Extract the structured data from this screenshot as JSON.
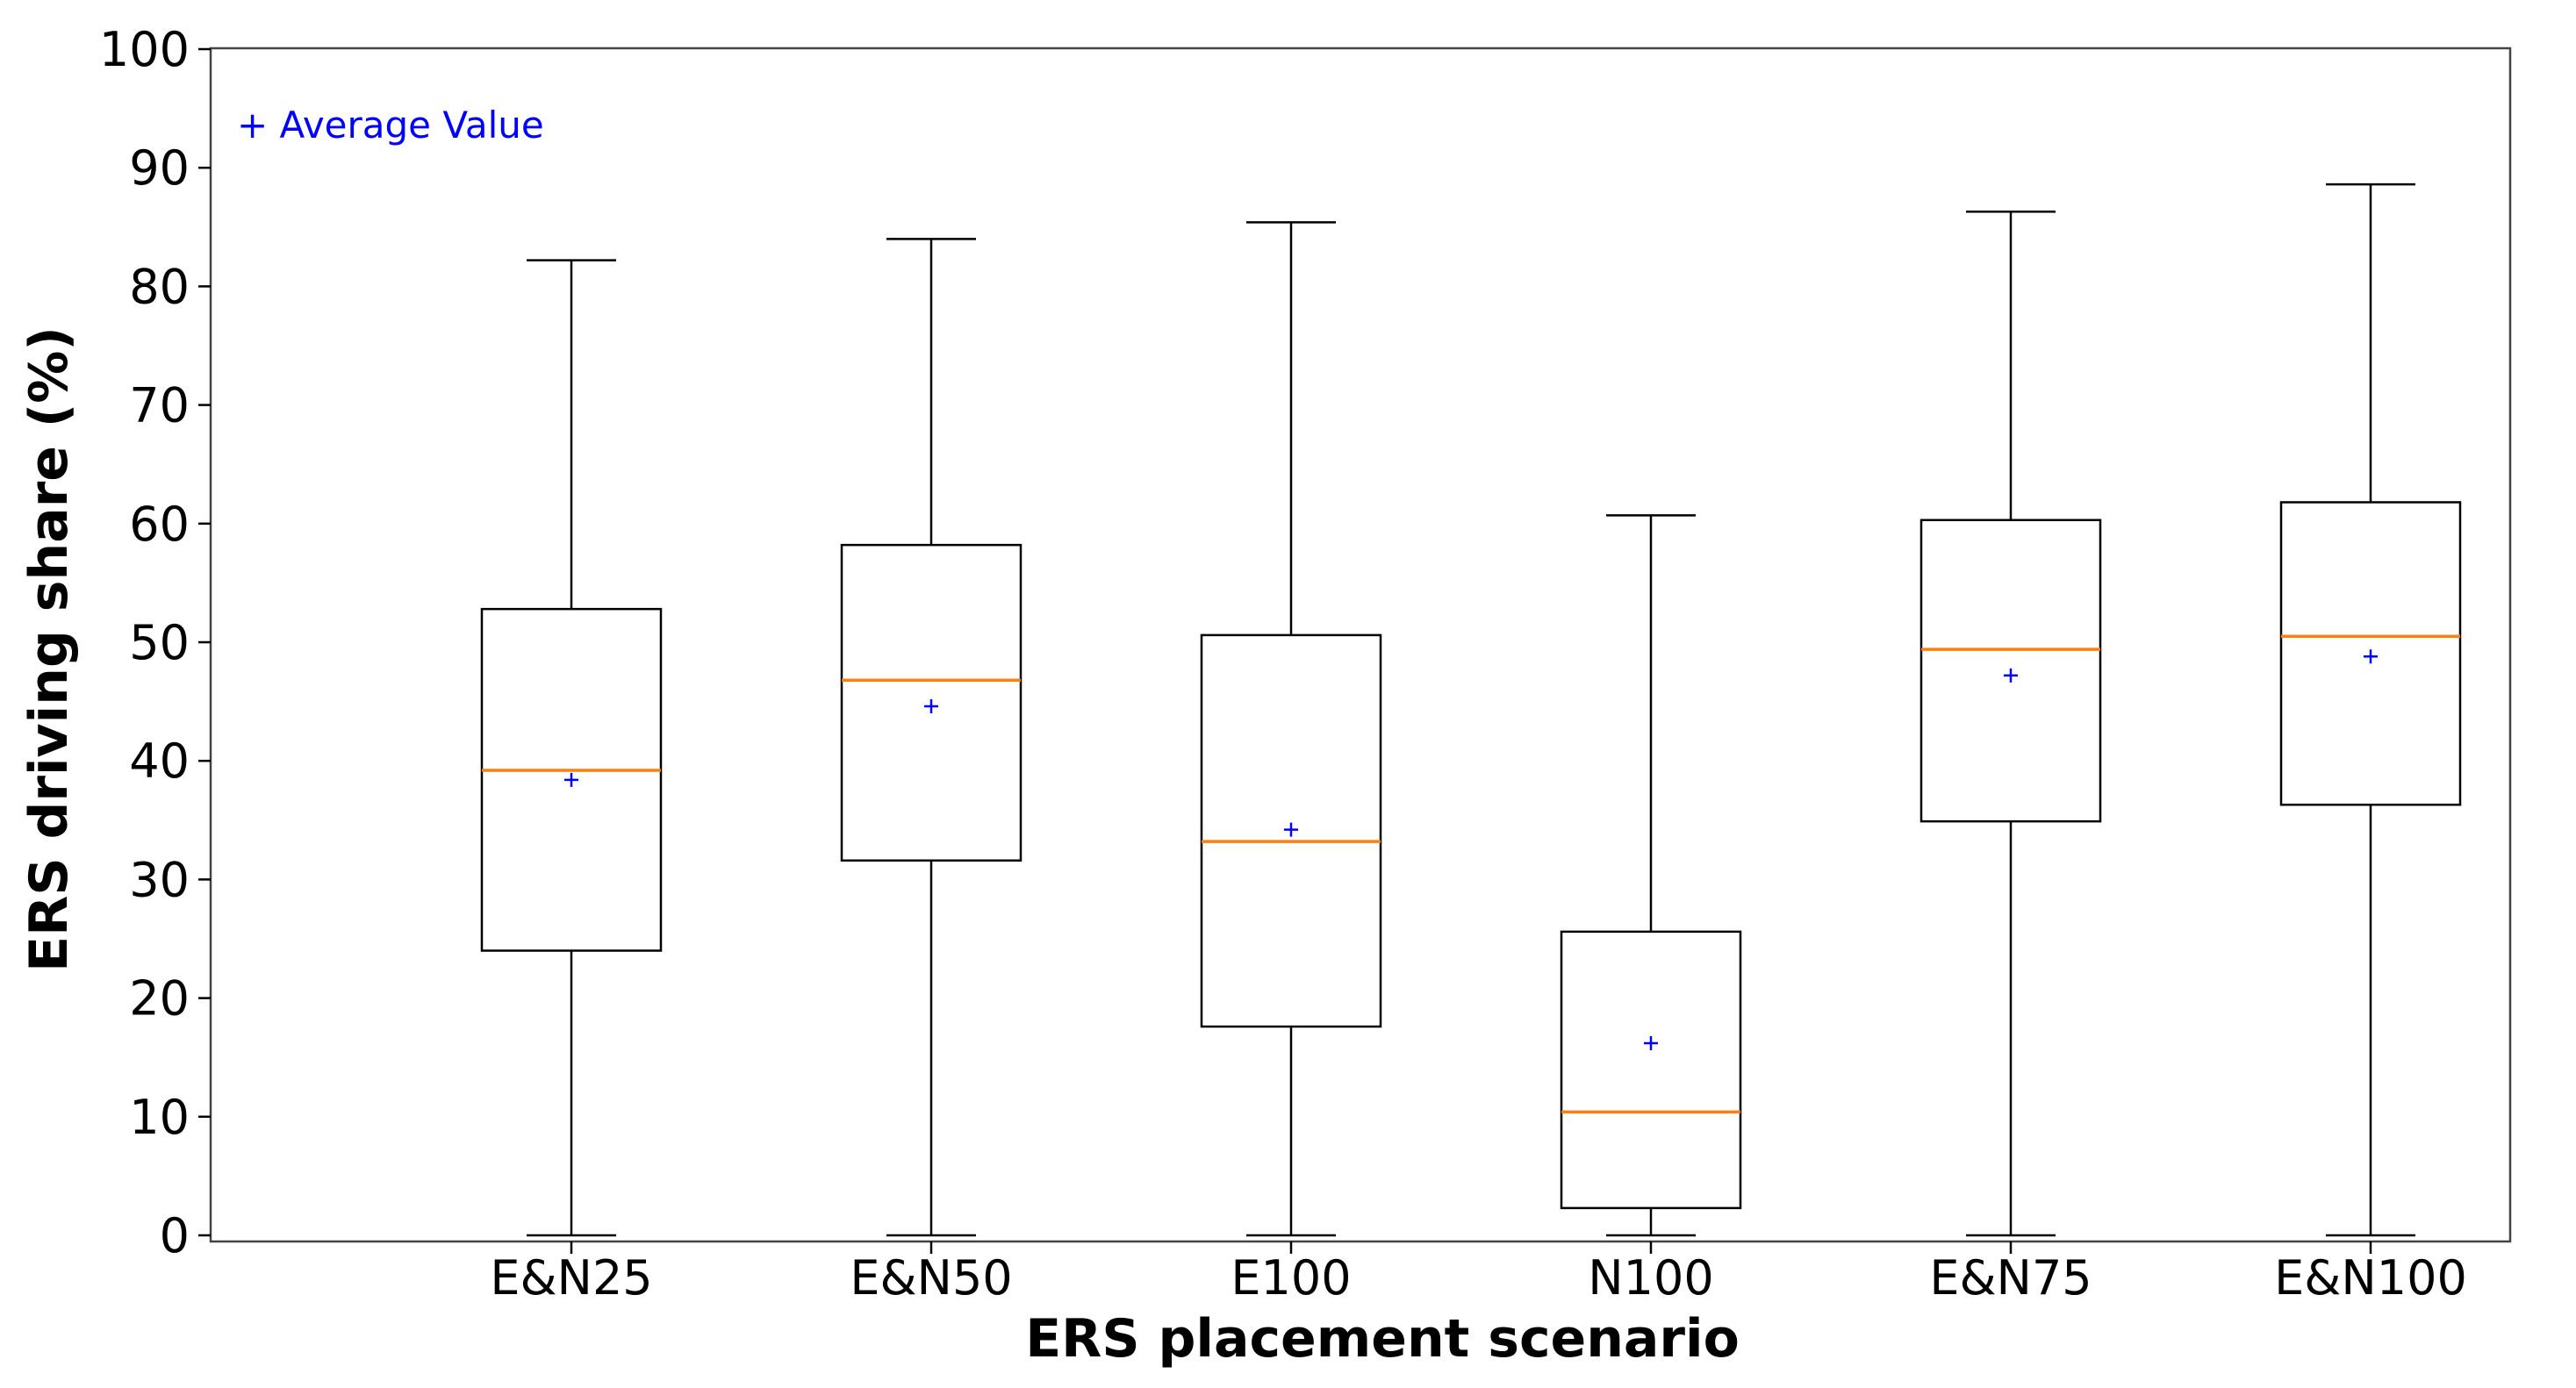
{
  "chart_data": {
    "type": "box",
    "xlabel": "ERS placement scenario",
    "ylabel": "ERS driving share (%)",
    "ylim": [
      0,
      100
    ],
    "yticks": [
      0,
      10,
      20,
      30,
      40,
      50,
      60,
      70,
      80,
      90,
      100
    ],
    "grid": false,
    "legend": {
      "label": "+ Average Value",
      "placement": "top-left",
      "color": "#0000ff"
    },
    "colors": {
      "box": "#000000",
      "median": "#ff7f0e",
      "mean": "#0000ff"
    },
    "categories": [
      "E&N25",
      "E&N50",
      "E100",
      "N100",
      "E&N75",
      "E&N100"
    ],
    "boxes": [
      {
        "category": "E&N25",
        "whisker_low": 0,
        "q1": 24.0,
        "median": 39.2,
        "q3": 52.8,
        "whisker_high": 82.2,
        "mean": 38.4
      },
      {
        "category": "E&N50",
        "whisker_low": 0,
        "q1": 31.6,
        "median": 46.8,
        "q3": 58.2,
        "whisker_high": 84.0,
        "mean": 44.6
      },
      {
        "category": "E100",
        "whisker_low": 0,
        "q1": 17.6,
        "median": 33.2,
        "q3": 50.6,
        "whisker_high": 85.4,
        "mean": 34.2
      },
      {
        "category": "N100",
        "whisker_low": 0,
        "q1": 2.3,
        "median": 10.4,
        "q3": 25.6,
        "whisker_high": 60.7,
        "mean": 16.2
      },
      {
        "category": "E&N75",
        "whisker_low": 0,
        "q1": 34.9,
        "median": 49.4,
        "q3": 60.3,
        "whisker_high": 86.3,
        "mean": 47.2
      },
      {
        "category": "E&N100",
        "whisker_low": 0,
        "q1": 36.3,
        "median": 50.5,
        "q3": 61.8,
        "whisker_high": 88.6,
        "mean": 48.8
      }
    ]
  }
}
